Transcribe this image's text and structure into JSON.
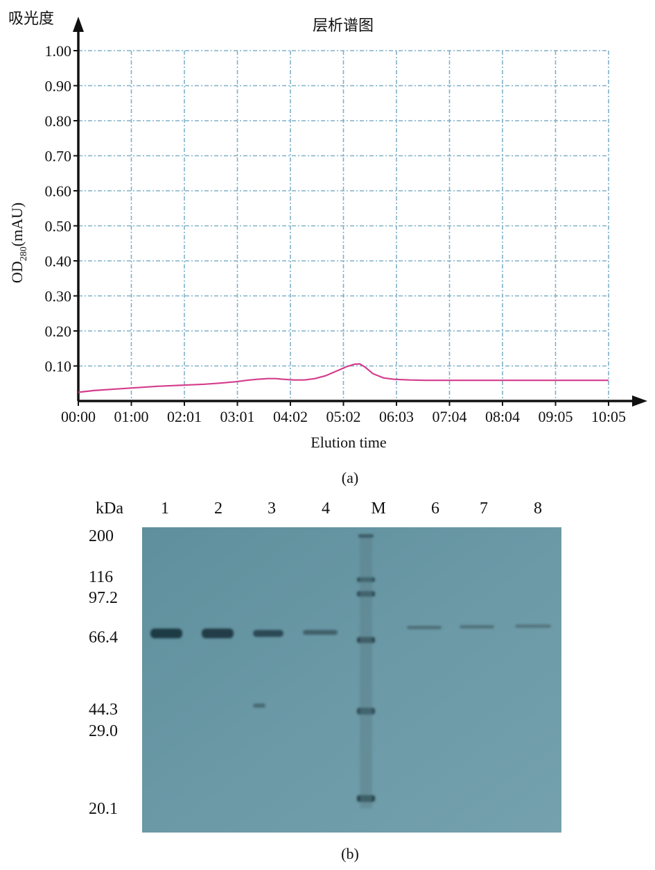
{
  "chart_data": {
    "type": "line",
    "title": "层析谱图",
    "ylabel_top": "吸光度",
    "ylabel": "OD",
    "ylabel_sub": "280",
    "ylabel_unit": "(mAU)",
    "xlabel": "Elution time",
    "x_ticks": [
      "00:00",
      "01:00",
      "02:01",
      "03:01",
      "04:02",
      "05:02",
      "06:03",
      "07:04",
      "08:04",
      "09:05",
      "10:05"
    ],
    "y_ticks": [
      "1.00",
      "0.90",
      "0.80",
      "0.70",
      "0.60",
      "0.50",
      "0.40",
      "0.30",
      "0.20",
      "0.10"
    ],
    "ylim": [
      0,
      1.0
    ],
    "grid": true,
    "line_color": "#d43c8c",
    "grid_color": "#7fb0c8",
    "series": [
      {
        "x": [
          0.0,
          0.3,
          0.6,
          0.9,
          1.2,
          1.5,
          1.8,
          2.1,
          2.4,
          2.7,
          3.0,
          3.2,
          3.4,
          3.6,
          3.75,
          3.9,
          4.1,
          4.3,
          4.5,
          4.7,
          4.9,
          5.1,
          5.25,
          5.35,
          5.45,
          5.6,
          5.8,
          6.0,
          6.3,
          6.6,
          7.0,
          7.5,
          8.0,
          8.5,
          9.0,
          9.5,
          10.08
        ],
        "y": [
          0.025,
          0.03,
          0.033,
          0.036,
          0.039,
          0.042,
          0.044,
          0.046,
          0.048,
          0.051,
          0.055,
          0.059,
          0.062,
          0.064,
          0.064,
          0.062,
          0.06,
          0.06,
          0.064,
          0.072,
          0.085,
          0.098,
          0.105,
          0.106,
          0.097,
          0.078,
          0.066,
          0.062,
          0.06,
          0.059,
          0.059,
          0.059,
          0.059,
          0.059,
          0.059,
          0.059,
          0.059
        ]
      }
    ]
  },
  "captions": {
    "a": "(a)",
    "b": "(b)"
  },
  "gel": {
    "header": "kDa",
    "lanes": [
      "1",
      "2",
      "3",
      "4",
      "M",
      "6",
      "7",
      "8"
    ],
    "markers": [
      "200",
      "116",
      "97.2",
      "66.4",
      "44.3",
      "29.0",
      "20.1"
    ]
  }
}
